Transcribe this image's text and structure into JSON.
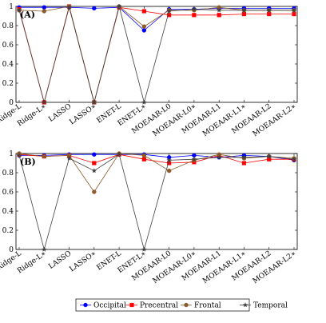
{
  "chart_data": [
    {
      "type": "line",
      "panel_label": "(A)",
      "categories": [
        "Ridge-L",
        "Ridge-L∗",
        "LASSO",
        "LASSO∗",
        "ENET-L",
        "ENET-L∗",
        "MOEAAR-L0",
        "MOEAAR-L0∗",
        "MOEAAR-L1",
        "MOEAAR-L1∗",
        "MOEAAR-L2",
        "MOEAAR-L2∗"
      ],
      "ylim": [
        0,
        1
      ],
      "yticks": [
        "0",
        "0.2",
        "0.4",
        "0.6",
        "0.8",
        "1"
      ],
      "grid": false,
      "series": [
        {
          "name": "Occipital",
          "color": "#0000ff",
          "marker": "circle",
          "values": [
            0.99,
            0.99,
            0.99,
            0.98,
            0.99,
            0.75,
            0.97,
            0.97,
            0.98,
            0.98,
            0.98,
            0.98
          ]
        },
        {
          "name": "Precentral",
          "color": "#ff0000",
          "marker": "square",
          "values": [
            0.97,
            0.0,
            1.0,
            0.0,
            0.99,
            0.95,
            0.91,
            0.91,
            0.91,
            0.92,
            0.92,
            0.92
          ]
        },
        {
          "name": "Frontal",
          "color": "#8c5a2b",
          "marker": "circle",
          "values": [
            0.96,
            0.95,
            1.0,
            0.0,
            1.0,
            0.79,
            0.96,
            0.96,
            0.99,
            0.96,
            0.96,
            0.96
          ]
        },
        {
          "name": "Temporal",
          "color": "#404040",
          "marker": "star",
          "values": [
            0.96,
            0.0,
            0.99,
            0.0,
            1.0,
            0.0,
            0.95,
            0.97,
            0.96,
            0.96,
            0.96,
            0.96
          ]
        }
      ]
    },
    {
      "type": "line",
      "panel_label": "(B)",
      "categories": [
        "Ridge-L",
        "Ridge-L∗",
        "LASSO",
        "LASSO∗",
        "ENET-L",
        "ENET-L∗",
        "MOEAAR-L0",
        "MOEAAR-L0∗",
        "MOEAAR-L1",
        "MOEAAR-L1∗",
        "MOEAAR-L2",
        "MOEAAR-L2∗"
      ],
      "ylim": [
        0,
        1
      ],
      "yticks": [
        "0",
        "0.2",
        "0.4",
        "0.6",
        "0.8",
        "1"
      ],
      "grid": false,
      "series": [
        {
          "name": "Occipital",
          "color": "#0000ff",
          "marker": "circle",
          "values": [
            0.98,
            0.98,
            0.99,
            0.99,
            0.99,
            0.99,
            0.96,
            0.98,
            0.96,
            0.98,
            0.97,
            0.93
          ]
        },
        {
          "name": "Precentral",
          "color": "#ff0000",
          "marker": "square",
          "values": [
            0.99,
            0.97,
            0.98,
            0.9,
            0.99,
            0.94,
            0.9,
            0.91,
            0.98,
            0.9,
            0.94,
            0.94
          ]
        },
        {
          "name": "Frontal",
          "color": "#8c5a2b",
          "marker": "circle",
          "values": [
            1.0,
            0.97,
            0.98,
            0.6,
            1.0,
            0.98,
            0.82,
            0.93,
            0.99,
            0.95,
            0.97,
            0.95
          ]
        },
        {
          "name": "Temporal",
          "color": "#404040",
          "marker": "star",
          "values": [
            0.98,
            0.0,
            0.95,
            0.82,
            0.99,
            0.0,
            0.93,
            0.94,
            0.96,
            0.96,
            0.97,
            0.94
          ]
        }
      ]
    }
  ],
  "legend": {
    "placement": "bottom",
    "items": [
      {
        "label": "Occipital",
        "color": "#0000ff",
        "marker": "circle"
      },
      {
        "label": "Precentral",
        "color": "#ff0000",
        "marker": "square"
      },
      {
        "label": "Frontal",
        "color": "#8c5a2b",
        "marker": "circle"
      },
      {
        "label": "Temporal",
        "color": "#404040",
        "marker": "star"
      }
    ]
  }
}
